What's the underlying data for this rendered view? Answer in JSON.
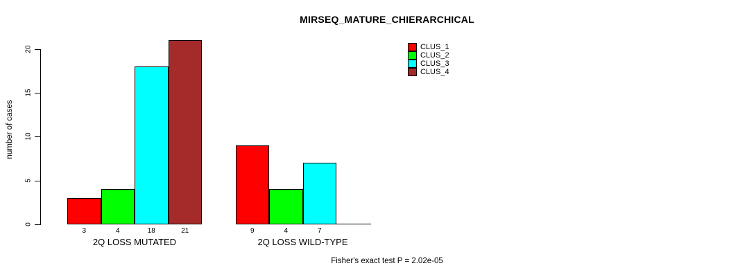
{
  "title": "MIRSEQ_MATURE_CHIERARCHICAL",
  "footer": "Fisher's exact test P = 2.02e-05",
  "chart_data": {
    "type": "bar",
    "title": "MIRSEQ_MATURE_CHIERARCHICAL",
    "xlabel": "",
    "ylabel": "number of cases",
    "ylim": [
      0,
      21
    ],
    "yticks": [
      0,
      5,
      10,
      15,
      20
    ],
    "grid": false,
    "background": "#ffffff",
    "legend_position": "top-right",
    "categories": [
      "2Q LOSS MUTATED",
      "2Q LOSS WILD-TYPE"
    ],
    "series": [
      {
        "name": "CLUS_1",
        "color": "#FF0000",
        "values": [
          3,
          9
        ]
      },
      {
        "name": "CLUS_2",
        "color": "#00FF00",
        "values": [
          4,
          4
        ]
      },
      {
        "name": "CLUS_3",
        "color": "#00FFFF",
        "values": [
          18,
          7
        ]
      },
      {
        "name": "CLUS_4",
        "color": "#A52A2A",
        "values": [
          21,
          0
        ]
      }
    ],
    "bar_value_labels": [
      [
        "3",
        "4",
        "18",
        "21"
      ],
      [
        "9",
        "4",
        "7",
        ""
      ]
    ],
    "annotation": "Fisher's exact test P = 2.02e-05"
  }
}
